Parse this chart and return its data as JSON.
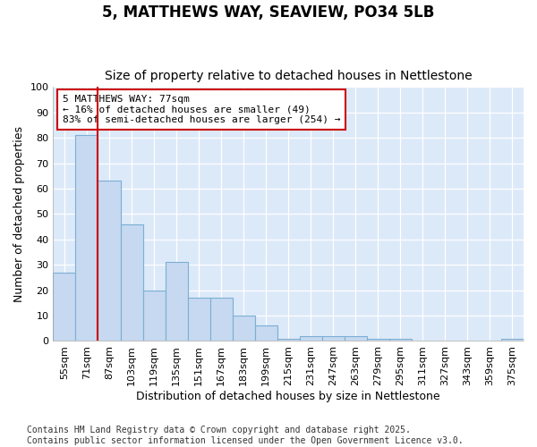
{
  "title": "5, MATTHEWS WAY, SEAVIEW, PO34 5LB",
  "subtitle": "Size of property relative to detached houses in Nettlestone",
  "xlabel": "Distribution of detached houses by size in Nettlestone",
  "ylabel": "Number of detached properties",
  "categories": [
    "55sqm",
    "71sqm",
    "87sqm",
    "103sqm",
    "119sqm",
    "135sqm",
    "151sqm",
    "167sqm",
    "183sqm",
    "199sqm",
    "215sqm",
    "231sqm",
    "247sqm",
    "263sqm",
    "279sqm",
    "295sqm",
    "311sqm",
    "327sqm",
    "343sqm",
    "359sqm",
    "375sqm"
  ],
  "values": [
    27,
    81,
    63,
    46,
    20,
    31,
    17,
    17,
    10,
    6,
    1,
    2,
    2,
    2,
    1,
    1,
    0,
    0,
    0,
    0,
    1
  ],
  "bar_color": "#c6d9f0",
  "bar_edge_color": "#7bafd4",
  "ylim": [
    0,
    100
  ],
  "yticks": [
    0,
    10,
    20,
    30,
    40,
    50,
    60,
    70,
    80,
    90,
    100
  ],
  "property_line_index": 1,
  "property_line_color": "#cc0000",
  "annotation_text": "5 MATTHEWS WAY: 77sqm\n← 16% of detached houses are smaller (49)\n83% of semi-detached houses are larger (254) →",
  "annotation_box_edgecolor": "#cc0000",
  "footer_text": "Contains HM Land Registry data © Crown copyright and database right 2025.\nContains public sector information licensed under the Open Government Licence v3.0.",
  "figure_bg": "#ffffff",
  "plot_bg": "#dce9f8",
  "grid_color": "#ffffff",
  "title_fontsize": 12,
  "subtitle_fontsize": 10,
  "axis_label_fontsize": 9,
  "tick_fontsize": 8,
  "footer_fontsize": 7
}
